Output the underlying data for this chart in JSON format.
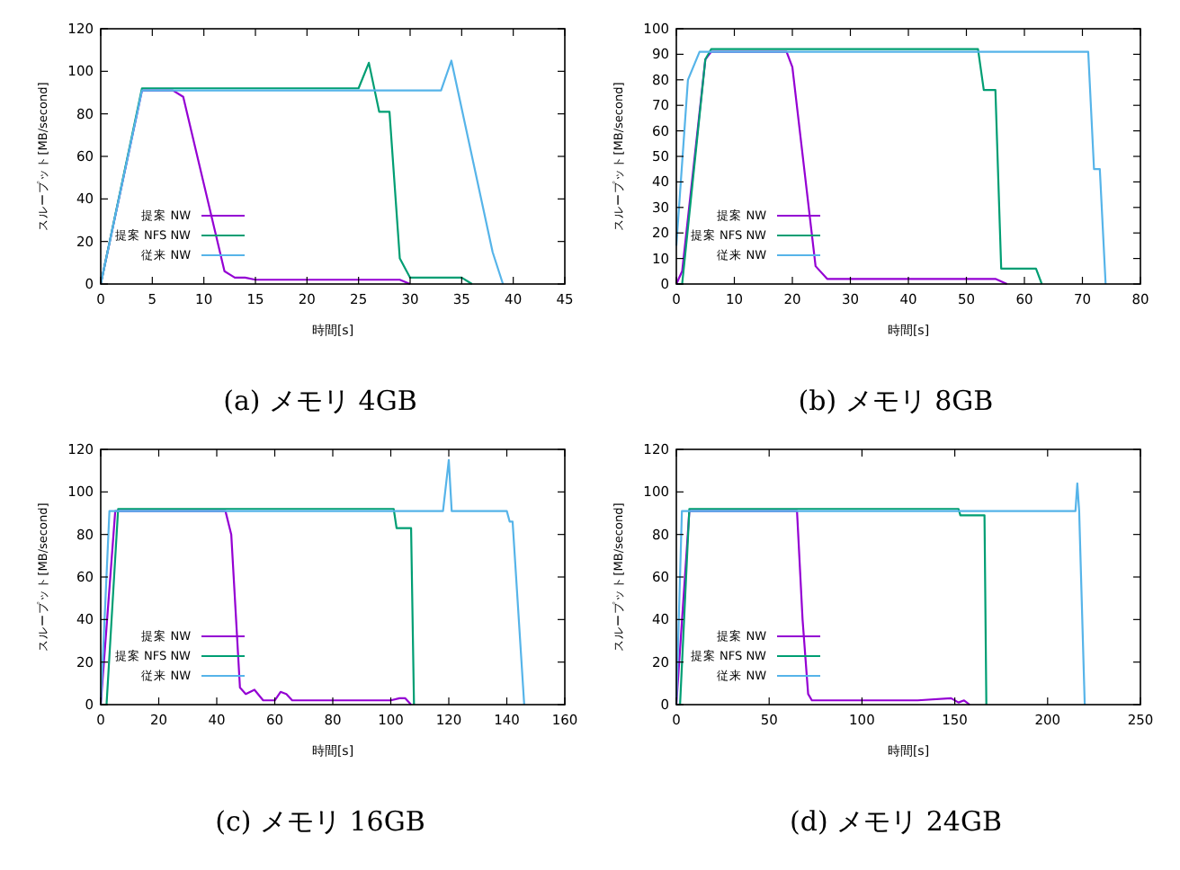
{
  "chart_data": [
    {
      "type": "line",
      "title": "(a) メモリ 4GB",
      "xlabel": "時間[s]",
      "ylabel": "スループット[MB/second]",
      "xlim": [
        0,
        45
      ],
      "xticks": [
        0,
        5,
        10,
        15,
        20,
        25,
        30,
        35,
        40,
        45
      ],
      "ylim": [
        0,
        120
      ],
      "yticks": [
        0,
        20,
        40,
        60,
        80,
        100,
        120
      ],
      "legend": "bottom left",
      "series": [
        {
          "name": "提案 NW",
          "color": "#9400d3",
          "x": [
            0,
            4,
            7,
            8,
            12,
            13,
            14,
            15,
            16,
            18,
            19,
            20,
            25,
            27,
            29,
            30
          ],
          "values": [
            0,
            91,
            91,
            88,
            6,
            3,
            3,
            2,
            2,
            2,
            2,
            2,
            2,
            2,
            2,
            0
          ]
        },
        {
          "name": "提案 NFS NW",
          "color": "#009e73",
          "x": [
            0,
            4,
            25,
            26,
            27,
            28,
            29,
            30,
            35,
            36
          ],
          "values": [
            0,
            92,
            92,
            104,
            81,
            81,
            12,
            3,
            3,
            0
          ]
        },
        {
          "name": "従来 NW",
          "color": "#56b4e9",
          "x": [
            0,
            4,
            33,
            34,
            38,
            39
          ],
          "values": [
            0,
            91,
            91,
            105,
            15,
            0
          ]
        }
      ]
    },
    {
      "type": "line",
      "title": "(b) メモリ 8GB",
      "xlabel": "時間[s]",
      "ylabel": "スループット[MB/second]",
      "xlim": [
        0,
        80
      ],
      "xticks": [
        0,
        10,
        20,
        30,
        40,
        50,
        60,
        70,
        80
      ],
      "ylim": [
        0,
        100
      ],
      "yticks": [
        0,
        10,
        20,
        30,
        40,
        50,
        60,
        70,
        80,
        90,
        100
      ],
      "legend": "bottom left",
      "series": [
        {
          "name": "提案 NW",
          "color": "#9400d3",
          "x": [
            0,
            1,
            5,
            6,
            19,
            20,
            24,
            26,
            28,
            30,
            51,
            53,
            55,
            57
          ],
          "values": [
            0,
            5,
            88,
            91,
            91,
            85,
            7,
            2,
            2,
            2,
            2,
            2,
            2,
            0
          ]
        },
        {
          "name": "提案 NFS NW",
          "color": "#009e73",
          "x": [
            0,
            1,
            5,
            6,
            52,
            53,
            55,
            56,
            62,
            63
          ],
          "values": [
            0,
            0,
            88,
            92,
            92,
            76,
            76,
            6,
            6,
            0
          ]
        },
        {
          "name": "従来 NW",
          "color": "#56b4e9",
          "x": [
            0,
            2,
            4,
            71,
            72,
            73,
            74
          ],
          "values": [
            15,
            80,
            91,
            91,
            45,
            45,
            0
          ]
        }
      ]
    },
    {
      "type": "line",
      "title": "(c) メモリ 16GB",
      "xlabel": "時間[s]",
      "ylabel": "スループット[MB/second]",
      "xlim": [
        0,
        160
      ],
      "xticks": [
        0,
        20,
        40,
        60,
        80,
        100,
        120,
        140,
        160
      ],
      "ylim": [
        0,
        120
      ],
      "yticks": [
        0,
        20,
        40,
        60,
        80,
        100,
        120
      ],
      "legend": "bottom left",
      "series": [
        {
          "name": "提案 NW",
          "color": "#9400d3",
          "x": [
            0,
            5,
            43,
            45,
            48,
            50,
            53,
            56,
            60,
            62,
            64,
            66,
            80,
            100,
            103,
            105,
            107
          ],
          "values": [
            0,
            91,
            91,
            80,
            8,
            5,
            7,
            2,
            2,
            6,
            5,
            2,
            2,
            2,
            3,
            3,
            0
          ]
        },
        {
          "name": "提案 NFS NW",
          "color": "#009e73",
          "x": [
            0,
            2,
            6,
            101,
            102,
            107,
            108
          ],
          "values": [
            0,
            0,
            92,
            92,
            83,
            83,
            0
          ]
        },
        {
          "name": "従来 NW",
          "color": "#56b4e9",
          "x": [
            0,
            3,
            118,
            120,
            121,
            140,
            141,
            142,
            146
          ],
          "values": [
            0,
            91,
            91,
            115,
            91,
            91,
            86,
            86,
            0
          ]
        }
      ]
    },
    {
      "type": "line",
      "title": "(d) メモリ 24GB",
      "xlabel": "時間[s]",
      "ylabel": "スループット[MB/second]",
      "xlim": [
        0,
        250
      ],
      "xticks": [
        0,
        50,
        100,
        150,
        200,
        250
      ],
      "ylim": [
        0,
        120
      ],
      "yticks": [
        0,
        20,
        40,
        60,
        80,
        100,
        120
      ],
      "legend": "bottom left",
      "series": [
        {
          "name": "提案 NW",
          "color": "#9400d3",
          "x": [
            0,
            7,
            65,
            68,
            71,
            73,
            100,
            115,
            130,
            148,
            152,
            155,
            158
          ],
          "values": [
            0,
            91,
            91,
            40,
            5,
            2,
            2,
            2,
            2,
            3,
            1,
            2,
            0
          ]
        },
        {
          "name": "提案 NFS NW",
          "color": "#009e73",
          "x": [
            0,
            2,
            7,
            152,
            153,
            166,
            167
          ],
          "values": [
            0,
            0,
            92,
            92,
            89,
            89,
            0
          ]
        },
        {
          "name": "従来 NW",
          "color": "#56b4e9",
          "x": [
            0,
            3,
            215,
            216,
            217,
            220
          ],
          "values": [
            0,
            91,
            91,
            104,
            91,
            0
          ]
        }
      ]
    }
  ]
}
